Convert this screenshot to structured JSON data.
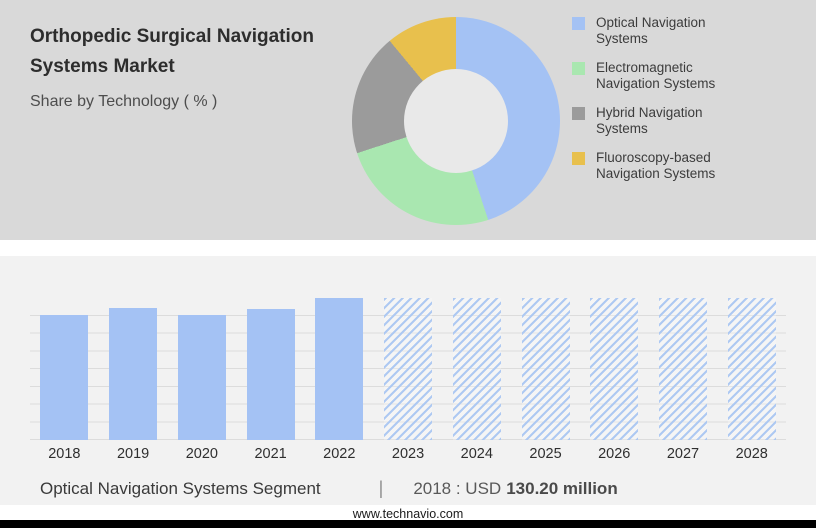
{
  "header": {
    "title": "Orthopedic Surgical Navigation Systems Market",
    "subtitle": "Share by Technology ( % )"
  },
  "caption": {
    "segment_label": "Optical Navigation Systems Segment",
    "separator": "|",
    "stat_prefix": "2018 : USD",
    "stat_value": "130.20 million"
  },
  "footer": {
    "website": "www.technavio.com"
  },
  "colors": {
    "top_bg": "#d9d9d9",
    "bottom_bg": "#f2f2f2",
    "bar_solid": "#a4c2f4",
    "bar_hatch": "#aec9f2",
    "footer_bar": "#000000"
  },
  "chart_data": [
    {
      "type": "pie",
      "subtype": "donut",
      "title": "Share by Technology ( % )",
      "labels": [
        "Optical Navigation Systems",
        "Electromagnetic Navigation Systems",
        "Hybrid Navigation Systems",
        "Fluoroscopy-based Navigation Systems"
      ],
      "values": [
        45,
        25,
        19,
        11
      ],
      "colors": [
        "#a4c2f4",
        "#a9e7b0",
        "#9b9b9b",
        "#e8c04d"
      ],
      "legend_position": "right"
    },
    {
      "type": "bar",
      "categories": [
        "2018",
        "2019",
        "2020",
        "2021",
        "2022",
        "2023",
        "2024",
        "2025",
        "2026",
        "2027",
        "2028"
      ],
      "values": [
        88,
        93,
        88,
        92,
        100,
        100,
        100,
        100,
        100,
        100,
        100
      ],
      "styles": [
        "solid",
        "solid",
        "solid",
        "solid",
        "solid",
        "hatched",
        "hatched",
        "hatched",
        "hatched",
        "hatched",
        "hatched"
      ],
      "ylim": [
        0,
        100
      ],
      "grid": true,
      "xlabel": "",
      "ylabel": "",
      "annotation": "2018 : USD 130.20 million"
    }
  ]
}
